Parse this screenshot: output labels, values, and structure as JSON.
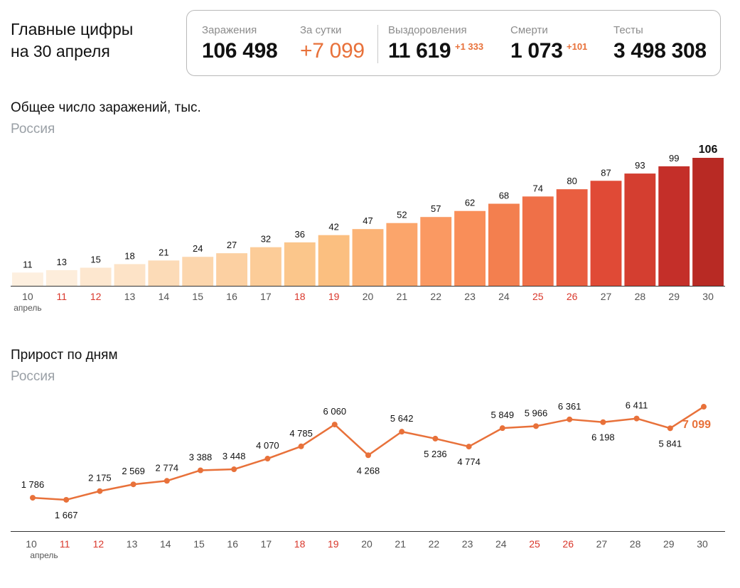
{
  "header": {
    "title_line1": "Главные цифры",
    "title_line2": "на 30 апреля"
  },
  "stats": {
    "infections": {
      "label": "Заражения",
      "value": "106 498"
    },
    "daily": {
      "label": "За сутки",
      "value": "+7 099"
    },
    "recoveries": {
      "label": "Выздоровления",
      "value": "11 619",
      "delta": "+1 333"
    },
    "deaths": {
      "label": "Смерти",
      "value": "1 073",
      "delta": "+101"
    },
    "tests": {
      "label": "Тесты",
      "value": "3 498 308"
    }
  },
  "colors": {
    "accent_orange": "#e8713a",
    "weekend_red": "#d9372b",
    "axis_gray": "#555555"
  },
  "chart_data": [
    {
      "type": "bar",
      "title": "Общее число заражений, тыс.",
      "subtitle": "Россия",
      "categories": [
        "10",
        "11",
        "12",
        "13",
        "14",
        "15",
        "16",
        "17",
        "18",
        "19",
        "20",
        "21",
        "22",
        "23",
        "24",
        "25",
        "26",
        "27",
        "28",
        "29",
        "30"
      ],
      "values": [
        11,
        13,
        15,
        18,
        21,
        24,
        27,
        32,
        36,
        42,
        47,
        52,
        57,
        62,
        68,
        74,
        80,
        87,
        93,
        99,
        106
      ],
      "labels": [
        "11",
        "13",
        "15",
        "18",
        "21",
        "24",
        "27",
        "32",
        "36",
        "42",
        "47",
        "52",
        "57",
        "62",
        "68",
        "74",
        "80",
        "87",
        "93",
        "99",
        "106"
      ],
      "highlight_categories": [
        "11",
        "12",
        "18",
        "19",
        "25",
        "26"
      ],
      "first_tick_sublabel": "апрель",
      "ylim": [
        0,
        106
      ],
      "grid": false,
      "bar_colors": [
        "#fdefdf",
        "#fdeddb",
        "#fde7cf",
        "#fde3c7",
        "#fcdbb7",
        "#fcd6ad",
        "#fcd0a2",
        "#fccc98",
        "#fbc68b",
        "#fbbf80",
        "#fbb376",
        "#fba56b",
        "#fa9962",
        "#f98e59",
        "#f37f4f",
        "#ef7048",
        "#e95e40",
        "#e04a36",
        "#d43e30",
        "#c42f29",
        "#b82a24"
      ]
    },
    {
      "type": "line",
      "title": "Прирост по дням",
      "subtitle": "Россия",
      "x": [
        "10",
        "11",
        "12",
        "13",
        "14",
        "15",
        "16",
        "17",
        "18",
        "19",
        "20",
        "21",
        "22",
        "23",
        "24",
        "25",
        "26",
        "27",
        "28",
        "29",
        "30"
      ],
      "values": [
        1786,
        1667,
        2175,
        2569,
        2774,
        3388,
        3448,
        4070,
        4785,
        6060,
        4268,
        5642,
        5236,
        4774,
        5849,
        5966,
        6361,
        6198,
        6411,
        5841,
        7099
      ],
      "labels": [
        "1 786",
        "1 667",
        "2 175",
        "2 569",
        "2 774",
        "3 388",
        "3 448",
        "4 070",
        "4 785",
        "6 060",
        "4 268",
        "5 642",
        "5 236",
        "4 774",
        "5 849",
        "5 966",
        "6 361",
        "6 198",
        "6 411",
        "5 841",
        "7 099"
      ],
      "label_positions": [
        "above",
        "below",
        "above",
        "above",
        "above",
        "above",
        "above",
        "above",
        "above",
        "above",
        "below",
        "above",
        "below",
        "below",
        "above",
        "above",
        "above",
        "below",
        "above",
        "below",
        "below"
      ],
      "highlight_categories": [
        "11",
        "12",
        "18",
        "19",
        "25",
        "26"
      ],
      "first_tick_sublabel": "апрель",
      "ylim": [
        0,
        7600
      ],
      "grid": false,
      "line_color": "#e8713a"
    }
  ]
}
